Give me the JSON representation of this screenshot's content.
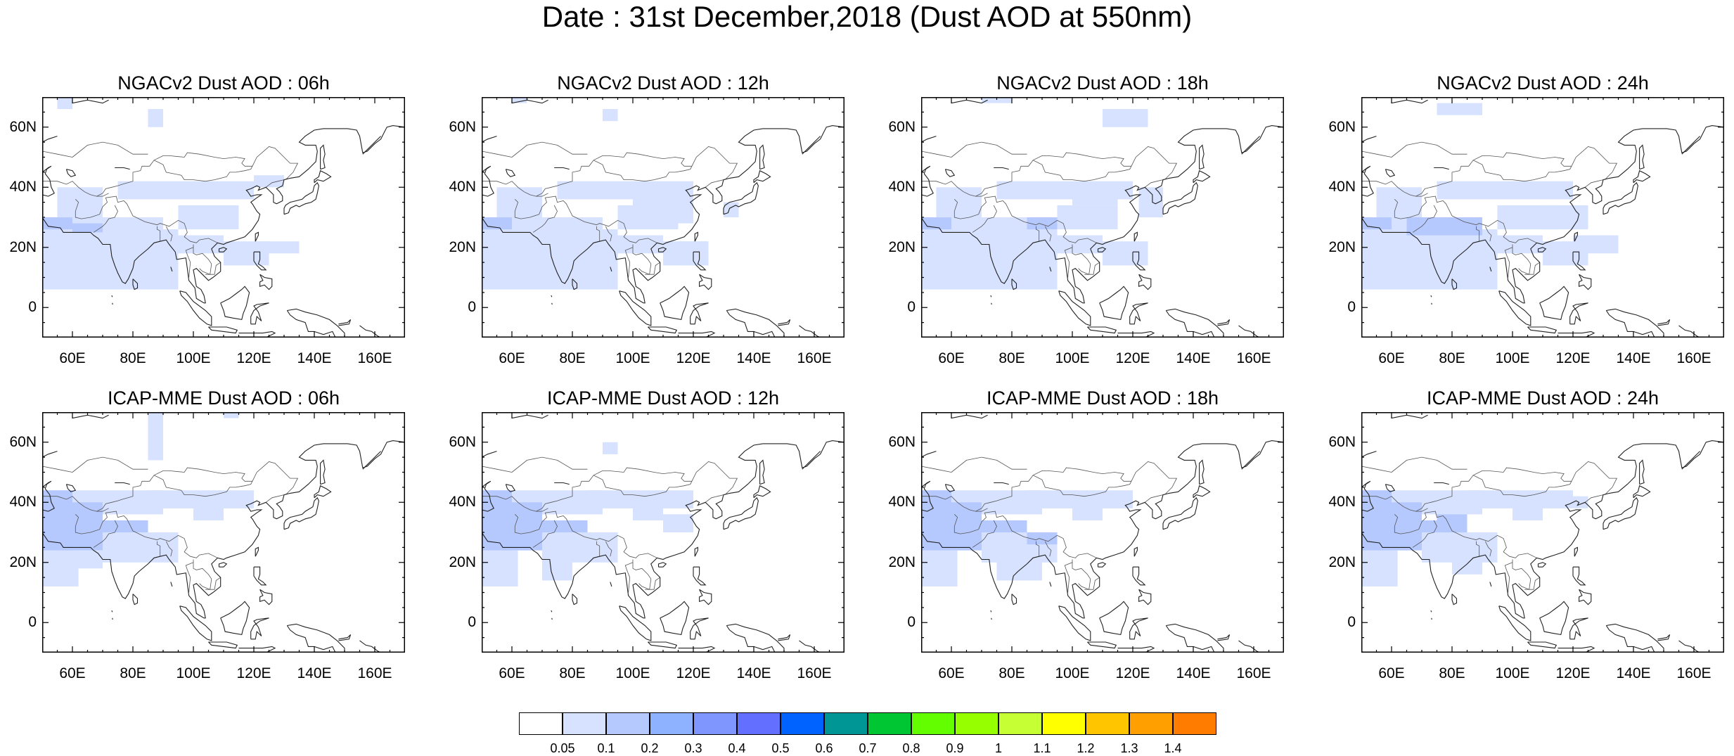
{
  "title": "Date : 31st December,2018 (Dust AOD at 550nm)",
  "panels": [
    {
      "title": "NGACv2 Dust AOD : 06h"
    },
    {
      "title": "NGACv2 Dust AOD : 12h"
    },
    {
      "title": "NGACv2 Dust AOD : 18h"
    },
    {
      "title": "NGACv2 Dust AOD : 24h"
    },
    {
      "title": "ICAP-MME Dust AOD : 06h"
    },
    {
      "title": "ICAP-MME Dust AOD : 12h"
    },
    {
      "title": "ICAP-MME Dust AOD : 18h"
    },
    {
      "title": "ICAP-MME Dust AOD : 24h"
    }
  ],
  "yticks": [
    "60N",
    "40N",
    "20N",
    "0"
  ],
  "xticks": [
    "60E",
    "80E",
    "100E",
    "120E",
    "140E",
    "160E"
  ],
  "colorbar": {
    "labels": [
      "0.05",
      "0.1",
      "0.2",
      "0.3",
      "0.4",
      "0.5",
      "0.6",
      "0.7",
      "0.8",
      "0.9",
      "1",
      "1.1",
      "1.2",
      "1.3",
      "1.4"
    ],
    "colors": [
      "#ffffff",
      "#d6e2ff",
      "#b5c9ff",
      "#8eb2ff",
      "#7f96ff",
      "#6370ff",
      "#0063ff",
      "#009696",
      "#00c633",
      "#63ff00",
      "#96ff00",
      "#c6ff33",
      "#ffff00",
      "#ffc600",
      "#ffa000",
      "#ff7c00",
      "#ff1900"
    ]
  }
}
